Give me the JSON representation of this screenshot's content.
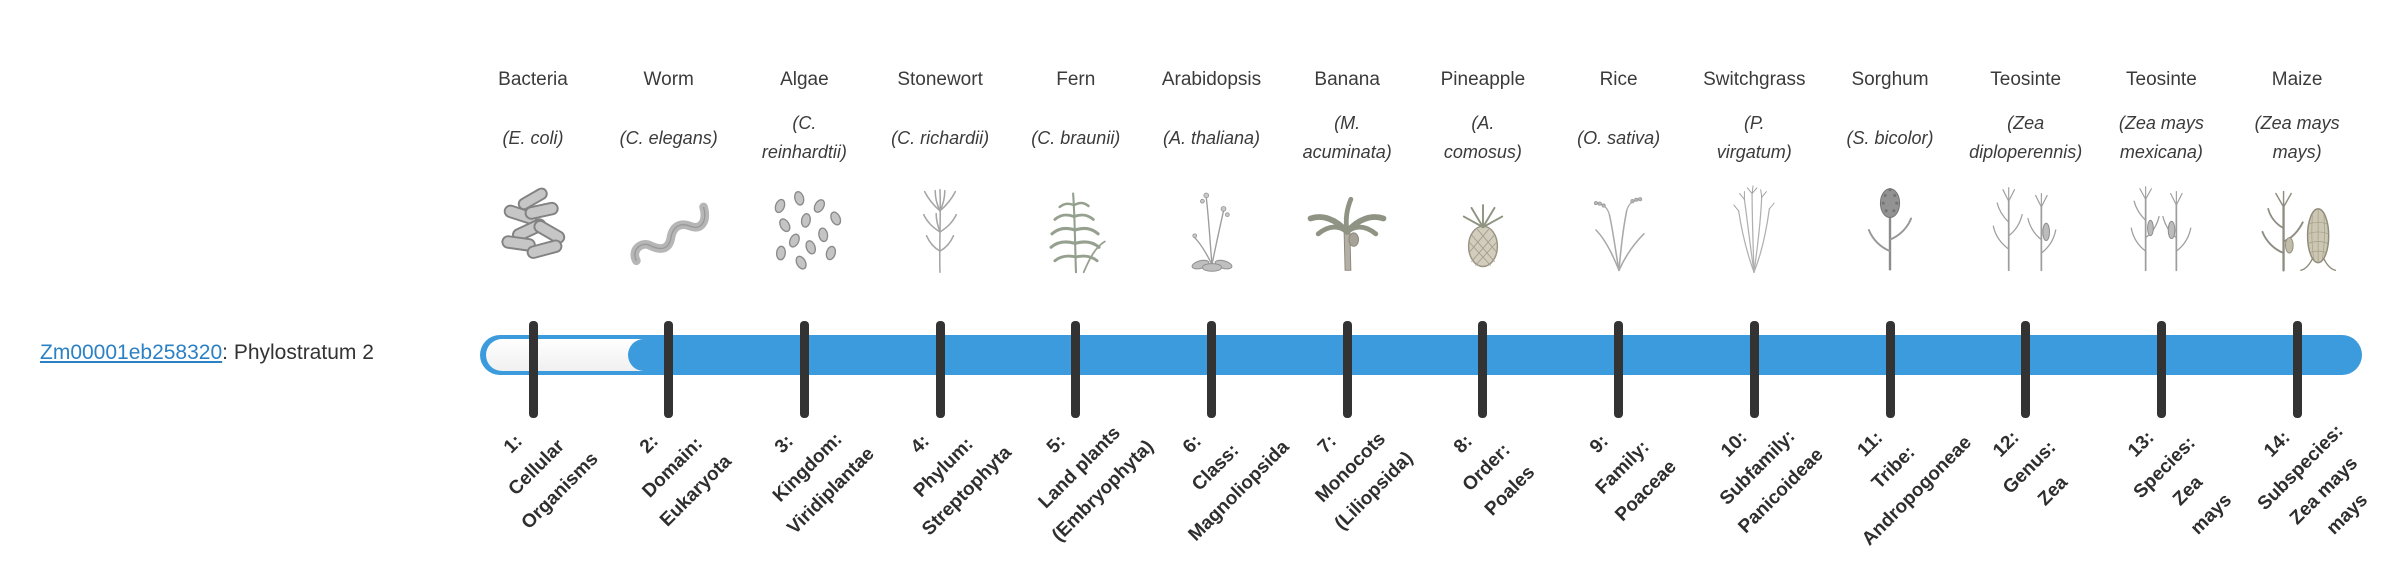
{
  "page": {
    "background": "#ffffff"
  },
  "gene": {
    "id": "Zm00001eb258320",
    "label_suffix": ": Phylostratum 2",
    "link_color": "#2c80c4"
  },
  "bar": {
    "track_color": "#3b9bdd",
    "unfilled_color": "#ffffff",
    "tick_color": "#333333",
    "phylostratum": 2,
    "filled_from_stratum": 2,
    "strata_count": 14
  },
  "organisms": [
    {
      "name": "Bacteria",
      "species": "(E. coli)",
      "icon": "bacteria-icon"
    },
    {
      "name": "Worm",
      "species": "(C. elegans)",
      "icon": "worm-icon"
    },
    {
      "name": "Algae",
      "species": "(C.\nreinhardtii)",
      "icon": "algae-icon"
    },
    {
      "name": "Stonewort",
      "species": "(C. richardii)",
      "icon": "stonewort-icon"
    },
    {
      "name": "Fern",
      "species": "(C. braunii)",
      "icon": "fern-icon"
    },
    {
      "name": "Arabidopsis",
      "species": "(A. thaliana)",
      "icon": "arabidopsis-icon"
    },
    {
      "name": "Banana",
      "species": "(M.\nacuminata)",
      "icon": "banana-icon"
    },
    {
      "name": "Pineapple",
      "species": "(A.\ncomosus)",
      "icon": "pineapple-icon"
    },
    {
      "name": "Rice",
      "species": "(O. sativa)",
      "icon": "rice-icon"
    },
    {
      "name": "Switchgrass",
      "species": "(P.\nvirgatum)",
      "icon": "switchgrass-icon"
    },
    {
      "name": "Sorghum",
      "species": "(S. bicolor)",
      "icon": "sorghum-icon"
    },
    {
      "name": "Teosinte",
      "species": "(Zea\ndiploperennis)",
      "icon": "teosinte-icon"
    },
    {
      "name": "Teosinte",
      "species": "(Zea mays\nmexicana)",
      "icon": "teosinte2-icon"
    },
    {
      "name": "Maize",
      "species": "(Zea mays\nmays)",
      "icon": "maize-icon"
    }
  ],
  "strata": [
    "1:\nCellular\nOrganisms",
    "2:\nDomain:\nEukaryota",
    "3:\nKingdom:\nViridiplantae",
    "4:\nPhylum:\nStreptophyta",
    "5:\nLand plants\n(Embryophyta)",
    "6:\nClass:\nMagnoliopsida",
    "7:\nMonocots\n(Liliopsida)",
    "8:\nOrder:\nPoales",
    "9:\nFamily:\nPoaceae",
    "10:\nSubfamily:\nPanicoideae",
    "11:\nTribe:\nAndropogoneae",
    "12:\nGenus:\nZea",
    "13:\nSpecies:\nZea\nmays",
    "14:\nSubspecies:\nZea mays\nmays"
  ]
}
